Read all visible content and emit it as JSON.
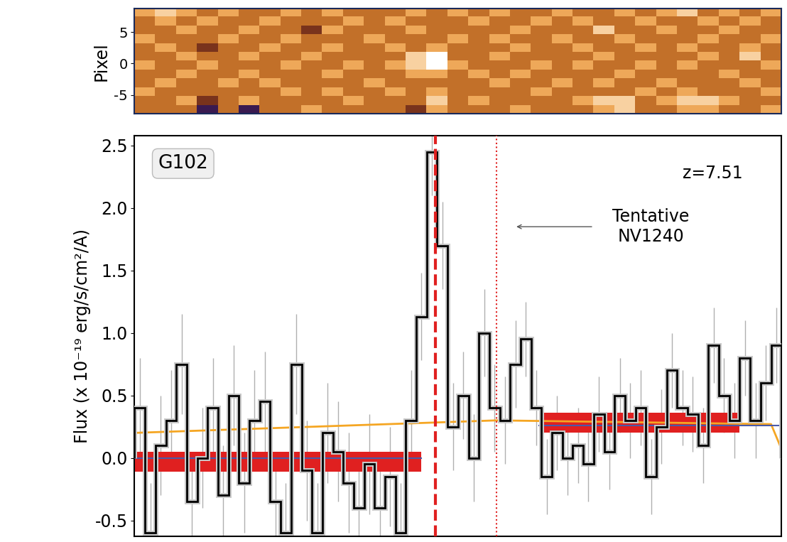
{
  "chart_data": [
    {
      "type": "heatmap",
      "ylabel": "Pixel",
      "xlim": [
        0,
        62
      ],
      "ylim": [
        -8,
        8.7
      ],
      "yticks": [
        5,
        0,
        -5
      ],
      "tick_labels": "y",
      "clim": [
        -2,
        3
      ],
      "cells": [
        [
          1,
          2,
          1,
          0,
          1,
          0,
          0,
          1,
          0,
          1,
          0,
          0,
          0,
          1,
          0,
          1,
          0,
          1,
          0,
          0,
          1,
          0,
          0,
          1,
          0,
          1,
          2,
          0,
          1,
          0,
          1
        ],
        [
          0,
          1,
          0,
          1,
          0,
          0,
          1,
          0,
          0,
          0,
          1,
          0,
          1,
          0,
          0,
          0,
          1,
          0,
          0,
          1,
          0,
          1,
          0,
          0,
          1,
          0,
          0,
          1,
          0,
          1,
          0
        ],
        [
          0,
          0,
          1,
          0,
          0,
          1,
          0,
          0,
          -1,
          1,
          0,
          0,
          0,
          1,
          0,
          0,
          0,
          0,
          1,
          0,
          0,
          0,
          2,
          0,
          0,
          1,
          0,
          0,
          1,
          0,
          0
        ],
        [
          1,
          0,
          0,
          0,
          1,
          0,
          0,
          1,
          0,
          0,
          0,
          1,
          0,
          0,
          0,
          1,
          0,
          1,
          0,
          0,
          1,
          0,
          0,
          1,
          0,
          0,
          0,
          1,
          0,
          0,
          1
        ],
        [
          0,
          1,
          0,
          -1,
          0,
          0,
          1,
          0,
          0,
          1,
          0,
          0,
          1,
          0,
          1,
          0,
          0,
          0,
          1,
          0,
          0,
          1,
          0,
          0,
          1,
          0,
          1,
          0,
          0,
          1,
          0
        ],
        [
          0,
          0,
          1,
          0,
          0,
          1,
          0,
          0,
          1,
          0,
          0,
          0,
          0,
          2,
          3,
          0,
          0,
          1,
          0,
          0,
          0,
          0,
          1,
          0,
          0,
          0,
          0,
          1,
          0,
          2,
          0
        ],
        [
          1,
          0,
          0,
          1,
          0,
          0,
          0,
          1,
          0,
          0,
          1,
          0,
          1,
          2,
          3,
          1,
          0,
          0,
          0,
          1,
          0,
          1,
          0,
          0,
          1,
          0,
          1,
          0,
          0,
          0,
          1
        ],
        [
          0,
          0,
          1,
          0,
          0,
          1,
          0,
          0,
          0,
          1,
          0,
          0,
          0,
          1,
          1,
          0,
          1,
          0,
          1,
          0,
          0,
          0,
          0,
          1,
          0,
          0,
          0,
          0,
          1,
          0,
          0
        ],
        [
          0,
          1,
          0,
          0,
          1,
          0,
          1,
          0,
          0,
          0,
          0,
          1,
          0,
          0,
          0,
          0,
          0,
          1,
          0,
          0,
          1,
          0,
          1,
          0,
          0,
          1,
          0,
          0,
          0,
          1,
          0
        ],
        [
          1,
          0,
          0,
          0,
          0,
          0,
          0,
          1,
          0,
          1,
          0,
          0,
          1,
          0,
          1,
          0,
          0,
          0,
          0,
          1,
          0,
          0,
          0,
          0,
          1,
          0,
          1,
          0,
          0,
          0,
          1
        ],
        [
          0,
          0,
          1,
          -1,
          0,
          1,
          0,
          0,
          0,
          0,
          1,
          0,
          0,
          0,
          2,
          0,
          1,
          0,
          0,
          0,
          0,
          1,
          2,
          2,
          0,
          1,
          2,
          2,
          1,
          0,
          0
        ],
        [
          0,
          0,
          0,
          -2,
          0,
          -2,
          0,
          0,
          1,
          0,
          0,
          0,
          0,
          -1,
          1,
          0,
          0,
          0,
          1,
          0,
          0,
          0,
          1,
          2,
          0,
          0,
          1,
          1,
          0,
          0,
          1
        ]
      ]
    },
    {
      "type": "histogram",
      "title": "G102",
      "ylabel": "Flux (x 10⁻¹⁹ erg/s/cm²/A)",
      "xlim": [
        0,
        62
      ],
      "ylim": [
        -0.63,
        2.58
      ],
      "yticks": [
        -0.5,
        0.0,
        0.5,
        1.0,
        1.5,
        2.0,
        2.5
      ],
      "tick_labels": "y",
      "color": "#000000",
      "bins": [
        0,
        1,
        2,
        3,
        4,
        5,
        6,
        7,
        8,
        9,
        10,
        11,
        12,
        13,
        14,
        15,
        16,
        17,
        18,
        19,
        20,
        21,
        22,
        23,
        24,
        25,
        26,
        27,
        28,
        29,
        30,
        31,
        32,
        33,
        34,
        35,
        36,
        37,
        38,
        39,
        40,
        41,
        42,
        43,
        44,
        45,
        46,
        47,
        48,
        49,
        50,
        51,
        52,
        53,
        54,
        55,
        56,
        57,
        58,
        59,
        60,
        61,
        62
      ],
      "values": [
        0.4,
        -0.6,
        0.1,
        0.3,
        0.75,
        -0.35,
        0.0,
        0.4,
        -0.3,
        0.5,
        -0.2,
        0.3,
        0.45,
        -0.35,
        -0.6,
        0.75,
        -0.1,
        -0.6,
        0.2,
        0.05,
        -0.2,
        -0.4,
        -0.05,
        -0.4,
        -0.15,
        -0.6,
        0.3,
        1.13,
        2.45,
        1.7,
        0.25,
        0.5,
        0.0,
        1.0,
        0.4,
        0.3,
        0.75,
        0.95,
        0.4,
        -0.15,
        0.2,
        0.0,
        0.1,
        -0.05,
        0.35,
        0.05,
        0.5,
        0.3,
        0.4,
        -0.15,
        0.25,
        0.7,
        0.4,
        0.35,
        0.1,
        0.9,
        0.5,
        0.3,
        0.8,
        0.3,
        0.6,
        0.9
      ],
      "errors": [
        0.4,
        0.4,
        0.4,
        0.4,
        0.4,
        0.4,
        0.4,
        0.4,
        0.4,
        0.4,
        0.4,
        0.4,
        0.4,
        0.4,
        0.4,
        0.4,
        0.4,
        0.4,
        0.4,
        0.4,
        0.4,
        0.4,
        0.4,
        0.4,
        0.4,
        0.4,
        0.4,
        0.35,
        0.35,
        0.35,
        0.35,
        0.35,
        0.35,
        0.35,
        0.35,
        0.35,
        0.35,
        0.3,
        0.3,
        0.3,
        0.3,
        0.3,
        0.3,
        0.3,
        0.3,
        0.3,
        0.3,
        0.3,
        0.3,
        0.3,
        0.3,
        0.3,
        0.3,
        0.3,
        0.3,
        0.3,
        0.3,
        0.3,
        0.3,
        0.3,
        0.3,
        0.3
      ],
      "model": {
        "x": [
          0,
          34.7,
          61,
          62
        ],
        "values": [
          0.2,
          0.3,
          0.27,
          0.07
        ],
        "color": "#f5a623"
      },
      "continuum": [
        {
          "x": [
            0,
            27.5
          ],
          "value": -0.03,
          "error": 0.08,
          "color": "#e02020"
        },
        {
          "x": [
            38.8,
            58
          ],
          "value": 0.28,
          "error": 0.08,
          "color": "#e02020"
        }
      ],
      "fit": [
        {
          "x": [
            0,
            27.5
          ],
          "value": 0.0,
          "color": "#4a5aa8"
        },
        {
          "x": [
            38.8,
            62
          ],
          "value": 0.26,
          "color": "#4a5aa8"
        }
      ],
      "vlines": [
        {
          "x": 28.8,
          "line_style": "dashed",
          "color": "#e02020"
        },
        {
          "x": 34.7,
          "line_style": "dotted",
          "color": "#e02020"
        }
      ],
      "annotations": [
        {
          "text": "z=7.51",
          "x": 55.4,
          "y": 2.28
        },
        {
          "text": "Tentative\nNV1240",
          "x": 49.5,
          "y": 1.85,
          "arrow_to": [
            36.4,
            1.85
          ],
          "arrow_from": [
            44.0,
            1.85
          ]
        }
      ]
    }
  ]
}
